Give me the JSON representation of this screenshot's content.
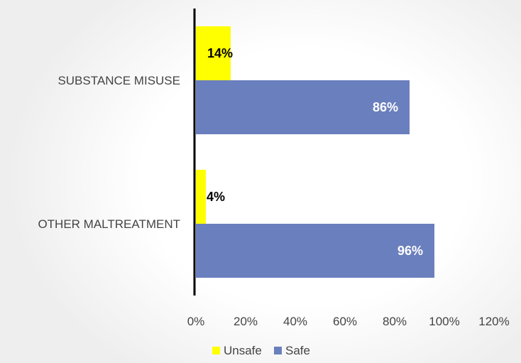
{
  "chart_data": {
    "type": "bar",
    "orientation": "horizontal",
    "categories": [
      "SUBSTANCE MISUSE",
      "OTHER MALTREATMENT"
    ],
    "series": [
      {
        "name": "Unsafe",
        "values": [
          14,
          4
        ],
        "labels": [
          "14%",
          "4%"
        ],
        "color": "#FFFF00",
        "label_color": "#000000"
      },
      {
        "name": "Safe",
        "values": [
          86,
          96
        ],
        "labels": [
          "86%",
          "96%"
        ],
        "color": "#6A7FBD",
        "label_color": "#FFFFFF"
      }
    ],
    "xlim": [
      0,
      120
    ],
    "xticks": [
      0,
      20,
      40,
      60,
      80,
      100,
      120
    ],
    "xtick_labels": [
      "0%",
      "20%",
      "40%",
      "60%",
      "80%",
      "100%",
      "120%"
    ],
    "grid": false,
    "legend": "bottom",
    "title": "",
    "xlabel": "",
    "ylabel": ""
  }
}
